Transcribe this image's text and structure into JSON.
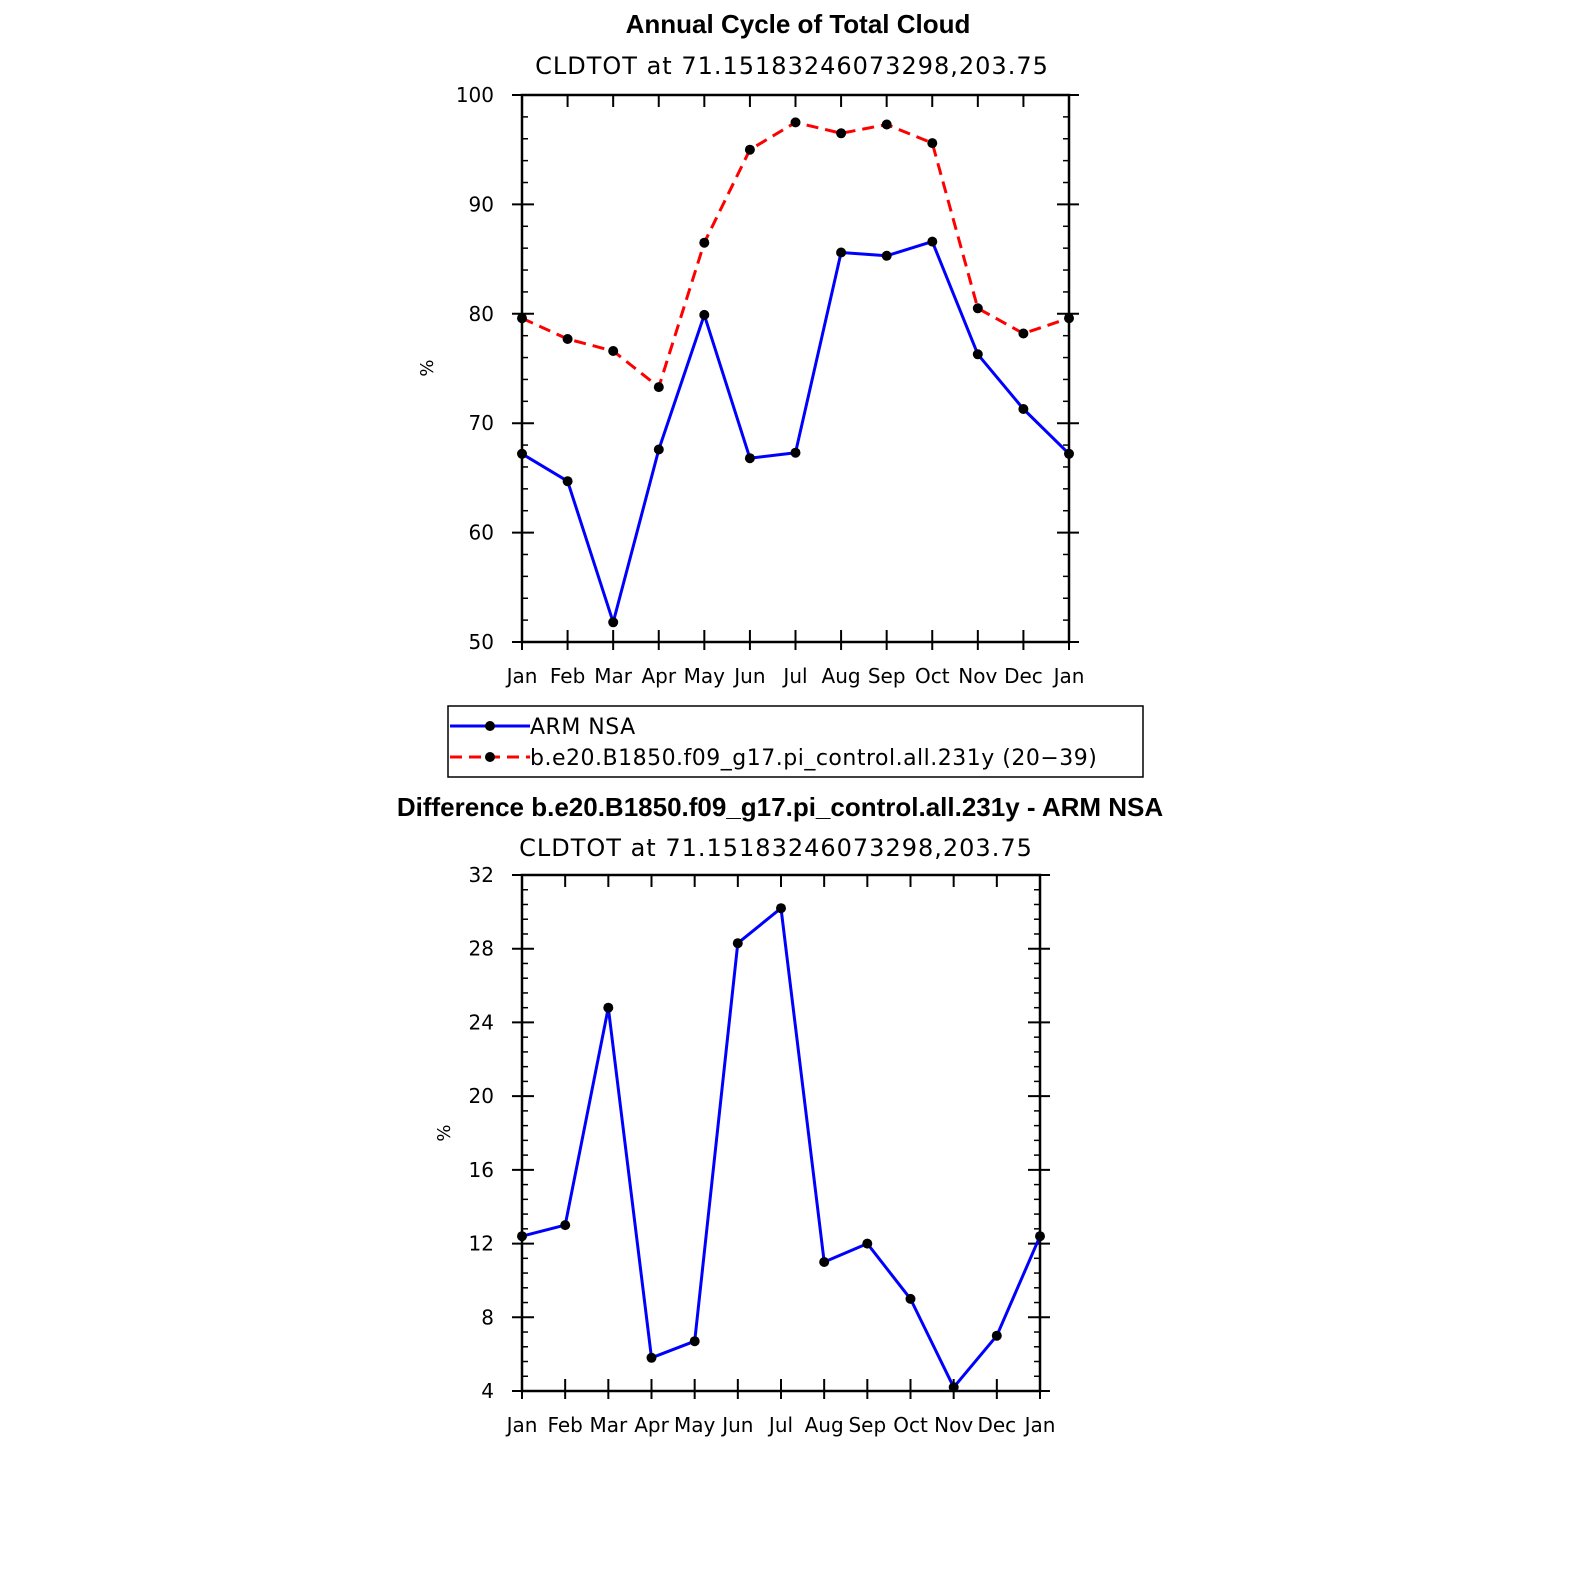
{
  "colors": {
    "obs": "#0000ff",
    "model": "#ff0000",
    "marker": "#000000",
    "axis": "#000000"
  },
  "chart_data": [
    {
      "type": "line",
      "title": "Annual Cycle of Total Cloud",
      "subtitle": "CLDTOT at 71.15183246073298,203.75",
      "xlabel": "",
      "ylabel": "%",
      "categories": [
        "Jan",
        "Feb",
        "Mar",
        "Apr",
        "May",
        "Jun",
        "Jul",
        "Aug",
        "Sep",
        "Oct",
        "Nov",
        "Dec",
        "Jan"
      ],
      "ylim": [
        50,
        100
      ],
      "yticks": [
        50,
        60,
        70,
        80,
        90,
        100
      ],
      "series": [
        {
          "name": "ARM NSA",
          "style": "solid",
          "color": "#0000ff",
          "values": [
            67.2,
            64.7,
            51.8,
            67.6,
            79.9,
            66.8,
            67.3,
            85.6,
            85.3,
            86.6,
            76.3,
            71.3,
            67.2
          ]
        },
        {
          "name": "b.e20.B1850.f09_g17.pi_control.all.231y (20−39)",
          "style": "dashed",
          "color": "#ff0000",
          "values": [
            79.6,
            77.7,
            76.6,
            73.3,
            86.5,
            95.0,
            97.5,
            96.5,
            97.3,
            95.6,
            80.5,
            78.2,
            79.6
          ]
        }
      ],
      "legend": "below"
    },
    {
      "type": "line",
      "title": "Difference b.e20.B1850.f09_g17.pi_control.all.231y - ARM NSA",
      "subtitle": "CLDTOT at 71.15183246073298,203.75",
      "xlabel": "",
      "ylabel": "%",
      "categories": [
        "Jan",
        "Feb",
        "Mar",
        "Apr",
        "May",
        "Jun",
        "Jul",
        "Aug",
        "Sep",
        "Oct",
        "Nov",
        "Dec",
        "Jan"
      ],
      "ylim": [
        4,
        32
      ],
      "yticks": [
        4,
        8,
        12,
        16,
        20,
        24,
        28,
        32
      ],
      "series": [
        {
          "name": "Difference",
          "style": "solid",
          "color": "#0000ff",
          "values": [
            12.4,
            13.0,
            24.8,
            5.8,
            6.7,
            28.3,
            30.2,
            11.0,
            12.0,
            9.0,
            4.2,
            7.0,
            12.4
          ]
        }
      ]
    }
  ]
}
